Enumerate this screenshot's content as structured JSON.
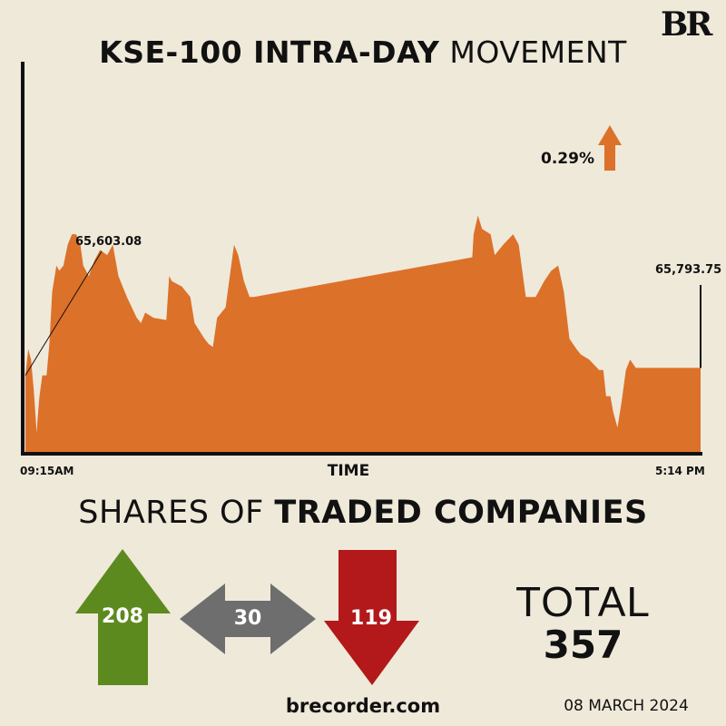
{
  "brand": {
    "logo": "BR",
    "site": "brecorder.com",
    "date": "08 MARCH 2024"
  },
  "title": {
    "bold": "KSE-100 INTRA-DAY",
    "light": "MOVEMENT"
  },
  "change": {
    "label": "0.29%",
    "direction": "up"
  },
  "colors": {
    "background": "#efe9da",
    "area": "#dc7129",
    "up": "#5d8a1e",
    "neutral": "#6e6e6e",
    "down": "#b3191a"
  },
  "chart_data": {
    "type": "area",
    "title": "KSE-100 INTRA-DAY MOVEMENT",
    "xlabel": "TIME",
    "ylabel": "",
    "x_unit": "minutes since 09:15",
    "x_tick_labels": [
      "09:15AM",
      "5:14 PM"
    ],
    "xlim": [
      0,
      479
    ],
    "ylim": [
      65400,
      66600
    ],
    "annotations": [
      {
        "label": "65,603.08",
        "x": 0
      },
      {
        "label": "65,793.75",
        "x": 479
      }
    ],
    "x": [
      0,
      2,
      4,
      6,
      8,
      9,
      10,
      12,
      15,
      17,
      19,
      22,
      24,
      27,
      30,
      33,
      36,
      39,
      41,
      45,
      49,
      53,
      58,
      62,
      66,
      72,
      79,
      82,
      85,
      91,
      100,
      102,
      104,
      111,
      117,
      120,
      127,
      130,
      133,
      136,
      142,
      146,
      148,
      151,
      155,
      159,
      162,
      317,
      318,
      321,
      324,
      330,
      333,
      339,
      346,
      350,
      355,
      359,
      362,
      368,
      373,
      378,
      382,
      386,
      391,
      394,
      400,
      407,
      410,
      412,
      415,
      417,
      420,
      423,
      426,
      429,
      433,
      479
    ],
    "values": [
      65760,
      65880,
      65832,
      65688,
      65496,
      65592,
      65664,
      65760,
      65760,
      65904,
      66144,
      66264,
      66240,
      66264,
      66360,
      66408,
      66408,
      66360,
      66264,
      66216,
      66288,
      66336,
      66312,
      66360,
      66216,
      66120,
      66024,
      66000,
      66048,
      66024,
      66014,
      66216,
      66192,
      66168,
      66120,
      66000,
      65928,
      65904,
      65890,
      66024,
      66072,
      66264,
      66360,
      66312,
      66192,
      66120,
      66120,
      66302,
      66408,
      66494,
      66432,
      66408,
      66312,
      66360,
      66408,
      66360,
      66120,
      66120,
      66120,
      66192,
      66240,
      66264,
      66144,
      65928,
      65880,
      65856,
      65832,
      65784,
      65784,
      65664,
      65664,
      65592,
      65520,
      65640,
      65784,
      65832,
      65794,
      65794
    ]
  },
  "shares": {
    "title_light": "SHARES OF",
    "title_bold": "TRADED COMPANIES",
    "advanced": "208",
    "unchanged": "30",
    "declined": "119",
    "total_label": "TOTAL",
    "total": "357"
  }
}
